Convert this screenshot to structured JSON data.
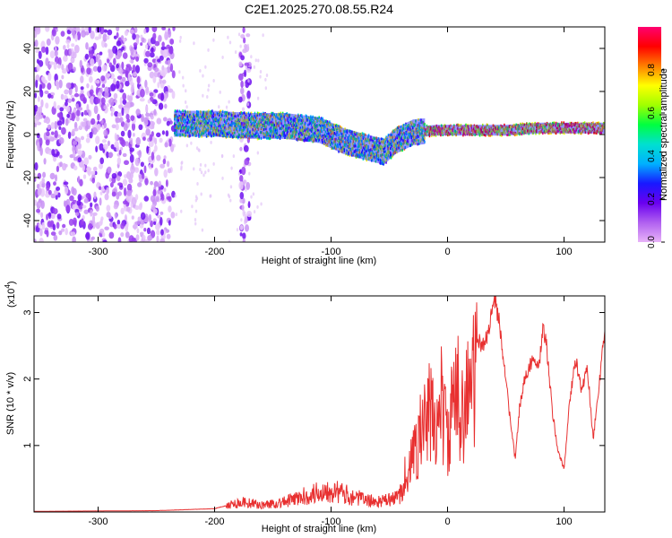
{
  "title": "C2E1.2025.270.08.55.R24",
  "colors": {
    "snr_line": "#e83030",
    "spectral_scale": [
      "#e8b3f8",
      "#b060f0",
      "#6a00f0",
      "#1818ff",
      "#00b0ff",
      "#00e0d0",
      "#00ff40",
      "#a0ff00",
      "#ffff00",
      "#ff8000",
      "#ff0000",
      "#ff0070"
    ]
  },
  "chart_data": [
    {
      "type": "heatmap",
      "xlabel": "Height of straight line (km)",
      "ylabel": "Frequency (Hz)",
      "xlim": [
        -355,
        135
      ],
      "ylim": [
        -50,
        50
      ],
      "x_ticks": [
        -300,
        -200,
        -100,
        0,
        100
      ],
      "y_ticks": [
        -40,
        -20,
        0,
        20,
        40
      ],
      "colorbar": {
        "label": "Normalized spectral amplitude",
        "range": [
          0,
          1
        ],
        "ticks": [
          "0.0",
          "0.2",
          "0.4",
          "0.6",
          "0.8"
        ],
        "tick_values": [
          0,
          0.2,
          0.4,
          0.6,
          0.8
        ]
      },
      "ridge_frequency_hz": {
        "x": [
          -235,
          -200,
          -170,
          -140,
          -110,
          -90,
          -70,
          -55,
          -45,
          -30,
          -10,
          0,
          20,
          50,
          80,
          110,
          135
        ],
        "y": [
          5,
          5,
          4,
          4,
          2,
          -3,
          -6,
          -8,
          -3,
          1,
          2,
          2,
          2,
          2,
          3,
          3,
          3
        ]
      },
      "noise_bands_km": [
        [
          -355,
          -235
        ],
        [
          -178,
          -170
        ]
      ]
    },
    {
      "type": "line",
      "xlabel": "Height of straight line (km)",
      "ylabel": "SNR (10 * v/v)",
      "y_scale_label": "(x10",
      "y_scale_exponent": "4",
      "xlim": [
        -355,
        135
      ],
      "ylim": [
        0,
        3.25
      ],
      "x_ticks": [
        -300,
        -200,
        -100,
        0,
        100
      ],
      "y_ticks": [
        1,
        2,
        3
      ],
      "series": [
        {
          "x": [
            -355,
            -250,
            -200,
            -185,
            -175,
            -160,
            -140,
            -120,
            -100,
            -95,
            -85,
            -70,
            -60,
            -45,
            -40,
            -30,
            -25,
            -20,
            -15,
            -10,
            -5,
            0,
            5,
            10,
            15,
            20,
            25,
            30,
            35,
            40,
            45,
            50,
            55,
            58,
            62,
            65,
            70,
            75,
            78,
            82,
            85,
            90,
            95,
            100,
            105,
            110,
            115,
            120,
            125,
            130,
            135
          ],
          "y": [
            0.01,
            0.02,
            0.05,
            0.12,
            0.15,
            0.1,
            0.15,
            0.25,
            0.35,
            0.3,
            0.25,
            0.18,
            0.15,
            0.2,
            0.3,
            1.0,
            1.4,
            1.6,
            1.85,
            1.6,
            2.1,
            1.3,
            2.0,
            2.2,
            2.0,
            2.4,
            2.6,
            2.5,
            2.7,
            3.25,
            2.8,
            2.0,
            1.2,
            0.8,
            1.6,
            1.9,
            2.2,
            2.3,
            2.1,
            2.75,
            2.5,
            1.5,
            0.9,
            0.65,
            1.7,
            2.3,
            1.8,
            2.2,
            1.1,
            1.9,
            2.7
          ]
        }
      ]
    }
  ]
}
